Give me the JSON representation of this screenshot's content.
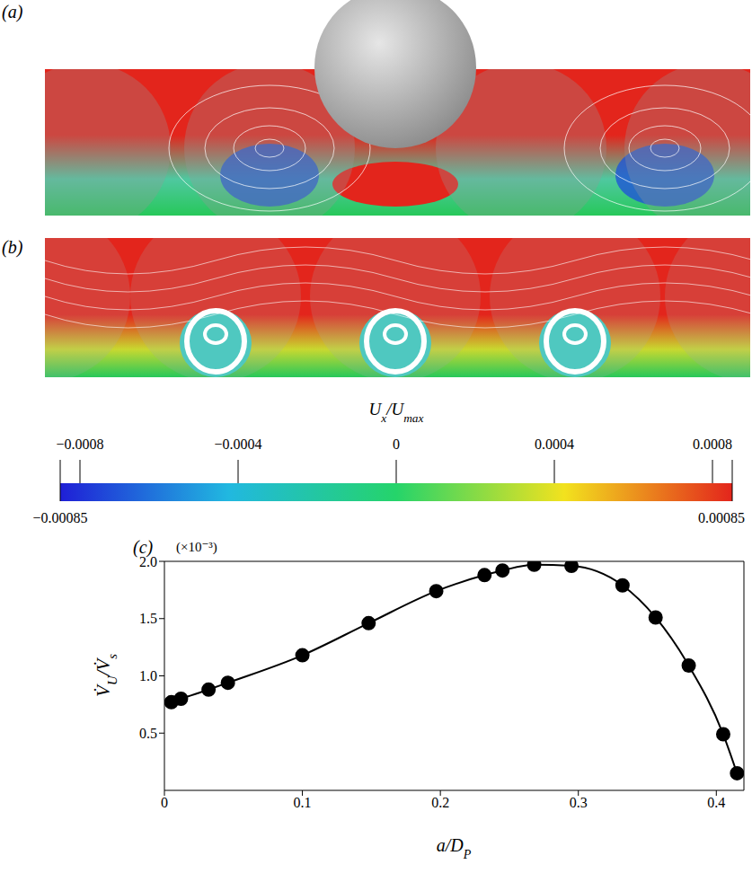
{
  "panel_labels": [
    "(a)",
    "(b)",
    "(c)"
  ],
  "colorbar": {
    "title": [
      {
        "t": "U"
      },
      {
        "t": "x",
        "sub": true
      },
      {
        "t": "/U"
      },
      {
        "t": "max",
        "sub": true
      }
    ],
    "range": [
      -0.00085,
      0.00085
    ],
    "ticks": [
      {
        "value": -0.0008,
        "label": "−0.0008"
      },
      {
        "value": -0.0004,
        "label": "−0.0004"
      },
      0,
      0.0004,
      0.0008
    ],
    "range_ticks": [
      {
        "value": -0.00085,
        "label": "−0.00085"
      },
      0.00085
    ]
  },
  "chart_data": {
    "type": "line",
    "x_label": [
      {
        "t": "a/D"
      },
      {
        "t": "P",
        "sub": true
      }
    ],
    "y_label": [
      {
        "t": "V̇"
      },
      {
        "t": "U",
        "sub": true
      },
      {
        "t": "/V̇"
      },
      {
        "t": "s",
        "sub": true
      }
    ],
    "y_scale_label": "(×10⁻³)",
    "x": [
      0.005,
      0.012,
      0.032,
      0.046,
      0.1,
      0.148,
      0.197,
      0.232,
      0.245,
      0.268,
      0.295,
      0.332,
      0.356,
      0.38,
      0.405,
      0.415
    ],
    "values": [
      0.77,
      0.8,
      0.88,
      0.94,
      1.18,
      1.46,
      1.74,
      1.88,
      1.92,
      1.97,
      1.96,
      1.79,
      1.51,
      1.09,
      0.49,
      0.15
    ],
    "xlim": [
      0,
      0.42
    ],
    "ylim": [
      0,
      2
    ],
    "xticks": [
      0,
      0.1,
      0.2,
      0.3,
      0.4
    ],
    "yticks": [
      0.5,
      {
        "value": 1,
        "label": "1.0"
      },
      1.5,
      {
        "value": 2,
        "label": "2.0"
      }
    ],
    "color": "#000000",
    "marker": "circle",
    "line_style": "solid"
  }
}
